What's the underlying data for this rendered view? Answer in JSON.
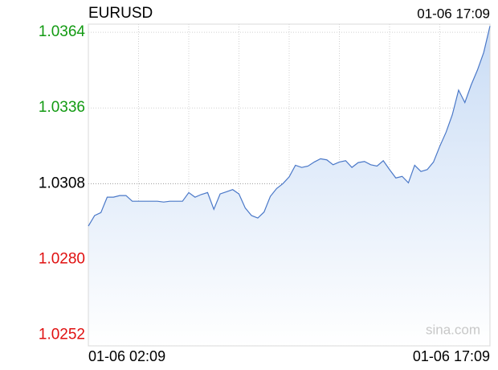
{
  "chart_data": {
    "type": "line",
    "title": "EURUSD",
    "timestamp": "01-06 17:09",
    "watermark": "sina.com",
    "categories": [
      "01-06 02:09",
      null,
      null,
      null,
      null,
      null,
      null,
      null,
      null,
      null,
      null,
      null,
      null,
      null,
      null,
      null,
      null,
      null,
      null,
      null,
      null,
      null,
      null,
      null,
      null,
      null,
      null,
      null,
      null,
      null,
      null,
      null,
      null,
      null,
      null,
      null,
      null,
      null,
      null,
      null,
      null,
      null,
      null,
      null,
      null,
      null,
      null,
      null,
      null,
      null,
      null,
      null,
      null,
      null,
      null,
      null,
      null,
      null,
      null,
      null,
      null,
      null,
      null,
      null,
      "01-06 17:09"
    ],
    "series": [
      {
        "name": "EURUSD",
        "color": "#4a78c8",
        "values": [
          1.02923,
          1.02962,
          1.02973,
          1.0303,
          1.0303,
          1.03036,
          1.03036,
          1.03015,
          1.03015,
          1.03015,
          1.03015,
          1.03015,
          1.03012,
          1.03015,
          1.03015,
          1.03015,
          1.03047,
          1.0303,
          1.0304,
          1.03047,
          1.02985,
          1.03042,
          1.0305,
          1.03058,
          1.03042,
          1.0299,
          1.02962,
          1.02953,
          1.02975,
          1.03033,
          1.03062,
          1.0308,
          1.03105,
          1.03148,
          1.0314,
          1.03145,
          1.0316,
          1.03172,
          1.03168,
          1.0315,
          1.0316,
          1.03165,
          1.0314,
          1.03158,
          1.03162,
          1.0315,
          1.03145,
          1.03165,
          1.03132,
          1.03101,
          1.03107,
          1.03083,
          1.03148,
          1.03125,
          1.03132,
          1.0316,
          1.03218,
          1.0327,
          1.03335,
          1.03426,
          1.0338,
          1.03445,
          1.035,
          1.03565,
          1.03663
        ]
      }
    ],
    "ylim": [
      1.0248,
      1.0367
    ],
    "yticks": [
      {
        "value": 1.0252,
        "label": "1.0252"
      },
      {
        "value": 1.028,
        "label": "1.0280"
      },
      {
        "value": 1.0308,
        "label": "1.0308"
      },
      {
        "value": 1.0336,
        "label": "1.0336"
      },
      {
        "value": 1.0364,
        "label": "1.0364"
      }
    ],
    "base": 1.0308,
    "up_color": "#129a12",
    "down_color": "#e01010",
    "base_color": "#000000",
    "grid": true
  }
}
